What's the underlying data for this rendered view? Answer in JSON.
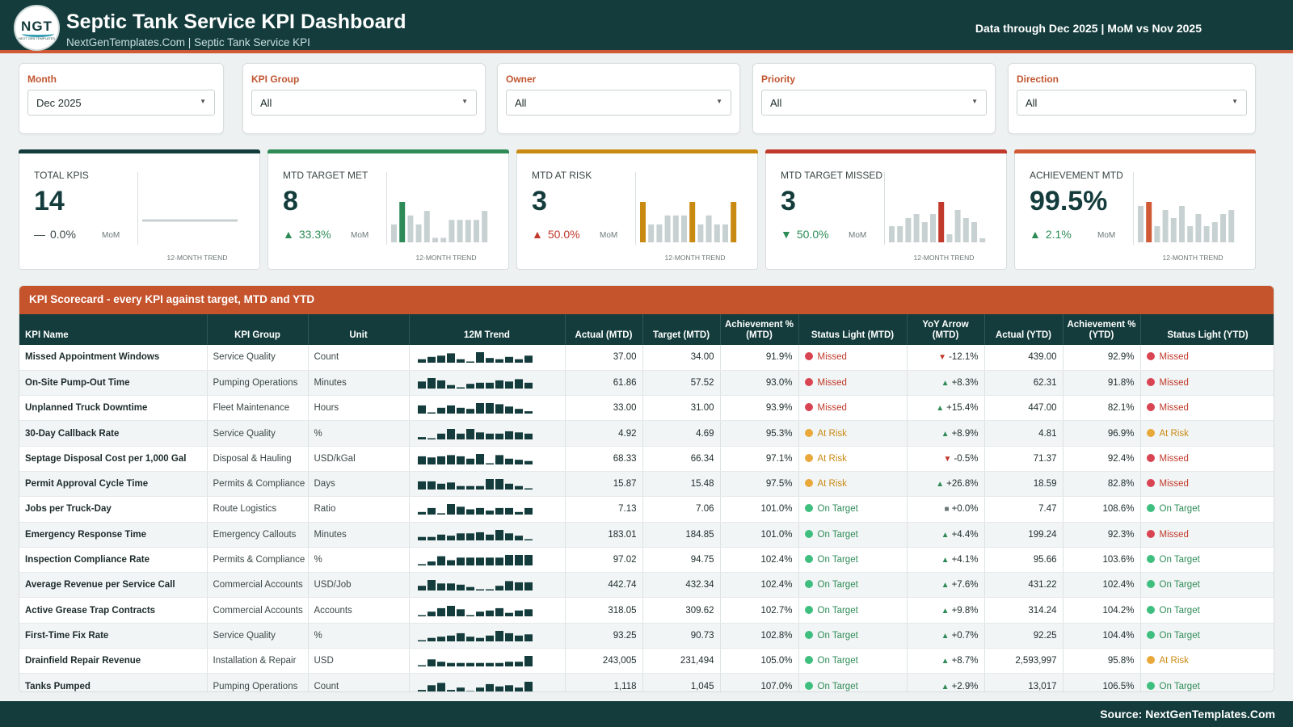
{
  "header": {
    "logo_text": "NGT",
    "logo_sub": "NEXT GEN TEMPLATES",
    "title": "Septic Tank Service KPI Dashboard",
    "subtitle": "NextGenTemplates.Com | Septic Tank Service KPI",
    "data_through": "Data through Dec 2025 | MoM vs Nov 2025"
  },
  "filters": [
    {
      "label": "Month",
      "value": "Dec 2025"
    },
    {
      "label": "KPI Group",
      "value": "All"
    },
    {
      "label": "Owner",
      "value": "All"
    },
    {
      "label": "Priority",
      "value": "All"
    },
    {
      "label": "Direction",
      "value": "All"
    }
  ],
  "kpi_cards": [
    {
      "label": "TOTAL KPIS",
      "value": "14",
      "delta": "0.0%",
      "direction": "flat",
      "mom": "MoM",
      "trend_label": "12-MONTH TREND",
      "accent": "#143c3c",
      "trend": [],
      "highlight": []
    },
    {
      "label": "MTD TARGET MET",
      "value": "8",
      "delta": "33.3%",
      "direction": "up",
      "mom": "MoM",
      "trend_label": "12-MONTH TREND",
      "accent": "#2e8b57",
      "trend": [
        4,
        9,
        6,
        4,
        7,
        1,
        1,
        5,
        5,
        5,
        5,
        7
      ],
      "highlight": [
        1
      ]
    },
    {
      "label": "MTD AT RISK",
      "value": "3",
      "delta": "50.0%",
      "direction": "up-bad",
      "mom": "MoM",
      "trend_label": "12-MONTH TREND",
      "accent": "#c98a12",
      "trend": [
        9,
        4,
        4,
        6,
        6,
        6,
        9,
        4,
        6,
        4,
        4,
        9
      ],
      "highlight": [
        0,
        6,
        11
      ]
    },
    {
      "label": "MTD TARGET MISSED",
      "value": "3",
      "delta": "50.0%",
      "direction": "down",
      "mom": "MoM",
      "trend_label": "12-MONTH TREND",
      "accent": "#c0392b",
      "trend": [
        4,
        4,
        6,
        7,
        5,
        7,
        10,
        2,
        8,
        6,
        5,
        1
      ],
      "highlight": [
        6
      ]
    },
    {
      "label": "ACHIEVEMENT MTD",
      "value": "99.5%",
      "delta": "2.1%",
      "direction": "up",
      "mom": "MoM",
      "trend_label": "12-MONTH TREND",
      "accent": "#d05a35",
      "trend": [
        9,
        10,
        4,
        8,
        6,
        9,
        4,
        7,
        4,
        5,
        7,
        8
      ],
      "highlight": [
        1
      ]
    }
  ],
  "scorecard": {
    "title": "KPI Scorecard - every KPI against target, MTD and YTD",
    "columns": [
      "KPI Name",
      "KPI Group",
      "Unit",
      "12M Trend",
      "Actual (MTD)",
      "Target (MTD)",
      "Achievement % (MTD)",
      "Status Light (MTD)",
      "YoY Arrow (MTD)",
      "Actual (YTD)",
      "Achievement % (YTD)",
      "Status Light (YTD)"
    ],
    "rows": [
      {
        "name": "Missed Appointment Windows",
        "group": "Service Quality",
        "unit": "Count",
        "actual_mtd": "37.00",
        "target_mtd": "34.00",
        "ach_mtd": "91.9%",
        "status_mtd": "Missed",
        "yoy": "-12.1%",
        "yoy_dir": "down",
        "actual_ytd": "439.00",
        "ach_ytd": "92.9%",
        "status_ytd": "Missed",
        "trend": [
          3,
          5,
          6,
          8,
          3,
          1,
          9,
          4,
          3,
          5,
          3,
          6
        ]
      },
      {
        "name": "On-Site Pump-Out Time",
        "group": "Pumping Operations",
        "unit": "Minutes",
        "actual_mtd": "61.86",
        "target_mtd": "57.52",
        "ach_mtd": "93.0%",
        "status_mtd": "Missed",
        "yoy": "+8.3%",
        "yoy_dir": "up",
        "actual_ytd": "62.31",
        "ach_ytd": "91.8%",
        "status_ytd": "Missed",
        "trend": [
          6,
          9,
          7,
          3,
          1,
          4,
          5,
          5,
          7,
          6,
          8,
          5
        ]
      },
      {
        "name": "Unplanned Truck Downtime",
        "group": "Fleet Maintenance",
        "unit": "Hours",
        "actual_mtd": "33.00",
        "target_mtd": "31.00",
        "ach_mtd": "93.9%",
        "status_mtd": "Missed",
        "yoy": "+15.4%",
        "yoy_dir": "up",
        "actual_ytd": "447.00",
        "ach_ytd": "82.1%",
        "status_ytd": "Missed",
        "trend": [
          7,
          1,
          5,
          7,
          5,
          4,
          9,
          9,
          8,
          6,
          4,
          2
        ]
      },
      {
        "name": "30-Day Callback Rate",
        "group": "Service Quality",
        "unit": "%",
        "actual_mtd": "4.92",
        "target_mtd": "4.69",
        "ach_mtd": "95.3%",
        "status_mtd": "At Risk",
        "yoy": "+8.9%",
        "yoy_dir": "up",
        "actual_ytd": "4.81",
        "ach_ytd": "96.9%",
        "status_ytd": "At Risk",
        "trend": [
          2,
          1,
          5,
          9,
          5,
          9,
          6,
          5,
          5,
          7,
          6,
          5
        ]
      },
      {
        "name": "Septage Disposal Cost per 1,000 Gal",
        "group": "Disposal & Hauling",
        "unit": "USD/kGal",
        "actual_mtd": "68.33",
        "target_mtd": "66.34",
        "ach_mtd": "97.1%",
        "status_mtd": "At Risk",
        "yoy": "-0.5%",
        "yoy_dir": "down",
        "actual_ytd": "71.37",
        "ach_ytd": "92.4%",
        "status_ytd": "Missed",
        "trend": [
          7,
          6,
          7,
          8,
          7,
          5,
          9,
          1,
          8,
          5,
          4,
          3
        ]
      },
      {
        "name": "Permit Approval Cycle Time",
        "group": "Permits & Compliance",
        "unit": "Days",
        "actual_mtd": "15.87",
        "target_mtd": "15.48",
        "ach_mtd": "97.5%",
        "status_mtd": "At Risk",
        "yoy": "+26.8%",
        "yoy_dir": "up",
        "actual_ytd": "18.59",
        "ach_ytd": "82.8%",
        "status_ytd": "Missed",
        "trend": [
          7,
          7,
          5,
          6,
          3,
          3,
          3,
          9,
          9,
          5,
          3,
          1
        ]
      },
      {
        "name": "Jobs per Truck-Day",
        "group": "Route Logistics",
        "unit": "Ratio",
        "actual_mtd": "7.13",
        "target_mtd": "7.06",
        "ach_mtd": "101.0%",
        "status_mtd": "On Target",
        "yoy": "+0.0%",
        "yoy_dir": "flat",
        "actual_ytd": "7.47",
        "ach_ytd": "108.6%",
        "status_ytd": "On Target",
        "trend": [
          2,
          5,
          1,
          8,
          6,
          4,
          5,
          3,
          5,
          5,
          2,
          5
        ]
      },
      {
        "name": "Emergency Response Time",
        "group": "Emergency Callouts",
        "unit": "Minutes",
        "actual_mtd": "183.01",
        "target_mtd": "184.85",
        "ach_mtd": "101.0%",
        "status_mtd": "On Target",
        "yoy": "+4.4%",
        "yoy_dir": "up",
        "actual_ytd": "199.24",
        "ach_ytd": "92.3%",
        "status_ytd": "Missed",
        "trend": [
          3,
          3,
          5,
          4,
          6,
          6,
          7,
          5,
          9,
          6,
          4,
          1
        ]
      },
      {
        "name": "Inspection Compliance Rate",
        "group": "Permits & Compliance",
        "unit": "%",
        "actual_mtd": "97.02",
        "target_mtd": "94.75",
        "ach_mtd": "102.4%",
        "status_mtd": "On Target",
        "yoy": "+4.1%",
        "yoy_dir": "up",
        "actual_ytd": "95.66",
        "ach_ytd": "103.6%",
        "status_ytd": "On Target",
        "trend": [
          1,
          3,
          7,
          4,
          6,
          6,
          6,
          6,
          6,
          8,
          8,
          8
        ]
      },
      {
        "name": "Average Revenue per Service Call",
        "group": "Commercial Accounts",
        "unit": "USD/Job",
        "actual_mtd": "442.74",
        "target_mtd": "432.34",
        "ach_mtd": "102.4%",
        "status_mtd": "On Target",
        "yoy": "+7.6%",
        "yoy_dir": "up",
        "actual_ytd": "431.22",
        "ach_ytd": "102.4%",
        "status_ytd": "On Target",
        "trend": [
          4,
          9,
          6,
          6,
          5,
          3,
          1,
          1,
          4,
          8,
          7,
          7
        ]
      },
      {
        "name": "Active Grease Trap Contracts",
        "group": "Commercial Accounts",
        "unit": "Accounts",
        "actual_mtd": "318.05",
        "target_mtd": "309.62",
        "ach_mtd": "102.7%",
        "status_mtd": "On Target",
        "yoy": "+9.8%",
        "yoy_dir": "up",
        "actual_ytd": "314.24",
        "ach_ytd": "104.2%",
        "status_ytd": "On Target",
        "trend": [
          1,
          4,
          7,
          9,
          6,
          1,
          4,
          5,
          7,
          3,
          5,
          6
        ]
      },
      {
        "name": "First-Time Fix Rate",
        "group": "Service Quality",
        "unit": "%",
        "actual_mtd": "93.25",
        "target_mtd": "90.73",
        "ach_mtd": "102.8%",
        "status_mtd": "On Target",
        "yoy": "+0.7%",
        "yoy_dir": "up",
        "actual_ytd": "92.25",
        "ach_ytd": "104.4%",
        "status_ytd": "On Target",
        "trend": [
          1,
          3,
          4,
          5,
          7,
          4,
          3,
          5,
          9,
          7,
          5,
          6
        ]
      },
      {
        "name": "Drainfield Repair Revenue",
        "group": "Installation & Repair",
        "unit": "USD",
        "actual_mtd": "243,005",
        "target_mtd": "231,494",
        "ach_mtd": "105.0%",
        "status_mtd": "On Target",
        "yoy": "+8.7%",
        "yoy_dir": "up",
        "actual_ytd": "2,593,997",
        "ach_ytd": "95.8%",
        "status_ytd": "At Risk",
        "trend": [
          1,
          6,
          4,
          3,
          3,
          3,
          3,
          3,
          3,
          4,
          4,
          9
        ]
      },
      {
        "name": "Tanks Pumped",
        "group": "Pumping Operations",
        "unit": "Count",
        "actual_mtd": "1,118",
        "target_mtd": "1,045",
        "ach_mtd": "107.0%",
        "status_mtd": "On Target",
        "yoy": "+2.9%",
        "yoy_dir": "up",
        "actual_ytd": "13,017",
        "ach_ytd": "106.5%",
        "status_ytd": "On Target",
        "trend": [
          2,
          6,
          8,
          2,
          4,
          1,
          4,
          7,
          5,
          6,
          4,
          9
        ]
      }
    ]
  },
  "footer": {
    "source": "Source: NextGenTemplates.Com"
  },
  "colors": {
    "primary": "#143c3c",
    "accent": "#d05a35",
    "missed": "#d94452",
    "at_risk": "#e8a93a",
    "on_target": "#3fbf7f"
  }
}
